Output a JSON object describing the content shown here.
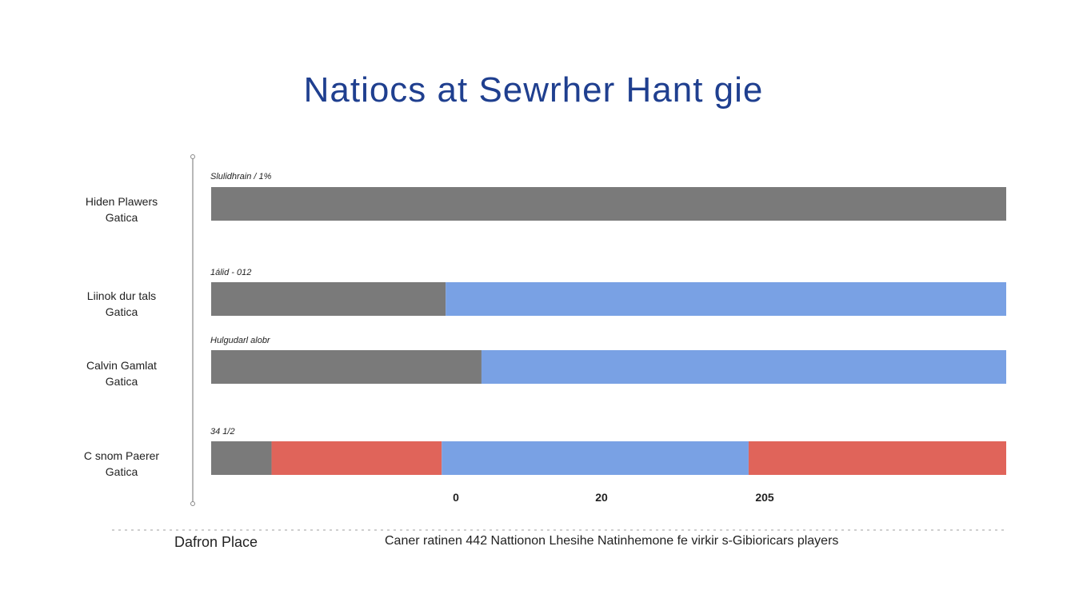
{
  "chart_data": {
    "type": "bar",
    "orientation": "horizontal",
    "stacked": true,
    "title": "Natiocs at Sewrher Hant gie",
    "categories": [
      [
        "Hiden Plawers",
        "Gatica"
      ],
      [
        "Liinok dur tals",
        "Gatica"
      ],
      [
        "Calvin Gamlat",
        "Gatica"
      ],
      [
        "C snom Paerer",
        "Gatica"
      ]
    ],
    "bar_notes": [
      "Slulidhrain / 1%",
      "1álid - 012",
      "Hulgudarl alobr",
      "34 1/2"
    ],
    "segments": [
      [
        {
          "color": "#7a7a7a",
          "from": 0,
          "to": 100
        }
      ],
      [
        {
          "color": "#7a7a7a",
          "from": 0,
          "to": 29.5
        },
        {
          "color": "#79a1e4",
          "from": 29.5,
          "to": 100
        }
      ],
      [
        {
          "color": "#7a7a7a",
          "from": 0,
          "to": 34
        },
        {
          "color": "#79a1e4",
          "from": 34,
          "to": 100
        }
      ],
      [
        {
          "color": "#7a7a7a",
          "from": 0,
          "to": 7.6
        },
        {
          "color": "#e0645a",
          "from": 7.6,
          "to": 29
        },
        {
          "color": "#79a1e4",
          "from": 29,
          "to": 67.6
        },
        {
          "color": "#e0645a",
          "from": 67.6,
          "to": 100
        }
      ]
    ],
    "x_ticks": [
      "0",
      "20",
      "205"
    ],
    "xlabel": "Caner ratinen 442 Nattionon Lhesihe Natinhemone fe virkir s-Gibioricars players",
    "ylabel": "Dafron Place"
  }
}
